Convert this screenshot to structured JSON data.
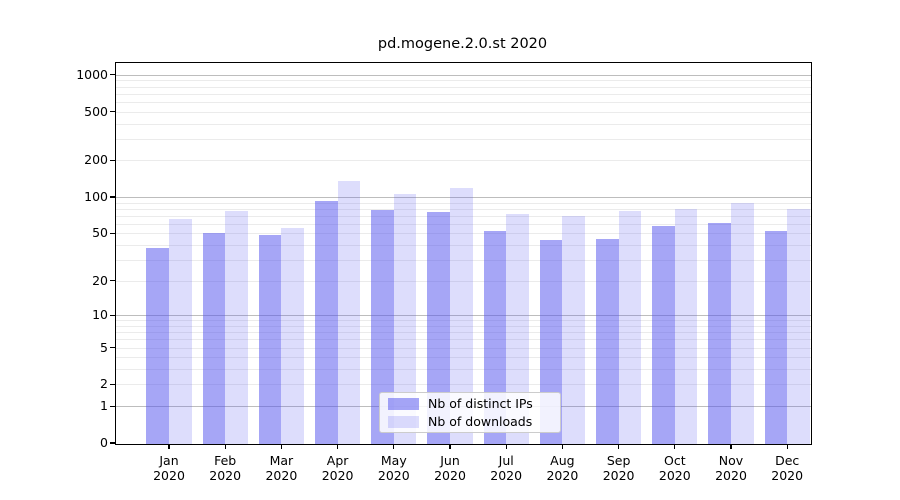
{
  "title": "pd.mogene.2.0.st 2020",
  "colors": {
    "distinct_ips_fill": "rgba(85,85,238,0.52)",
    "downloads_fill": "rgba(85,85,238,0.20)",
    "distinct_ips_hex": "#a6a6f4",
    "downloads_hex": "#ddddfb",
    "grid_major": "#bdbdbd",
    "grid_minor": "#ebebeb",
    "spine": "#000000"
  },
  "legend": {
    "items": [
      {
        "label": "Nb of distinct IPs",
        "series": "distinct_ips"
      },
      {
        "label": "Nb of downloads",
        "series": "downloads"
      }
    ]
  },
  "axes": {
    "y_ticks": [
      {
        "value": 0,
        "label": "0"
      },
      {
        "value": 1,
        "label": "1"
      },
      {
        "value": 2,
        "label": "2"
      },
      {
        "value": 5,
        "label": "5"
      },
      {
        "value": 10,
        "label": "10"
      },
      {
        "value": 20,
        "label": "20"
      },
      {
        "value": 50,
        "label": "50"
      },
      {
        "value": 100,
        "label": "100"
      },
      {
        "value": 200,
        "label": "200"
      },
      {
        "value": 500,
        "label": "500"
      },
      {
        "value": 1000,
        "label": "1000"
      }
    ],
    "x_tick_month": [
      "Jan",
      "Feb",
      "Mar",
      "Apr",
      "May",
      "Jun",
      "Jul",
      "Aug",
      "Sep",
      "Oct",
      "Nov",
      "Dec"
    ],
    "x_tick_year": "2020"
  },
  "chart_data": {
    "type": "bar",
    "title": "pd.mogene.2.0.st 2020",
    "categories": [
      "Jan 2020",
      "Feb 2020",
      "Mar 2020",
      "Apr 2020",
      "May 2020",
      "Jun 2020",
      "Jul 2020",
      "Aug 2020",
      "Sep 2020",
      "Oct 2020",
      "Nov 2020",
      "Dec 2020"
    ],
    "series": [
      {
        "name": "Nb of distinct IPs",
        "values": [
          38,
          50,
          49,
          93,
          78,
          76,
          52,
          44,
          45,
          58,
          61,
          52
        ]
      },
      {
        "name": "Nb of downloads",
        "values": [
          66,
          77,
          56,
          136,
          106,
          118,
          72,
          70,
          77,
          80,
          89,
          80
        ]
      }
    ],
    "yscale": "symlog (log1p)",
    "ylim": [
      0,
      1250
    ],
    "y_major_gridlines": [
      1,
      10,
      100,
      1000
    ],
    "grid": "horizontal major+minor",
    "legend_position": "lower center-right inside plot",
    "xlabel": "",
    "ylabel": ""
  }
}
